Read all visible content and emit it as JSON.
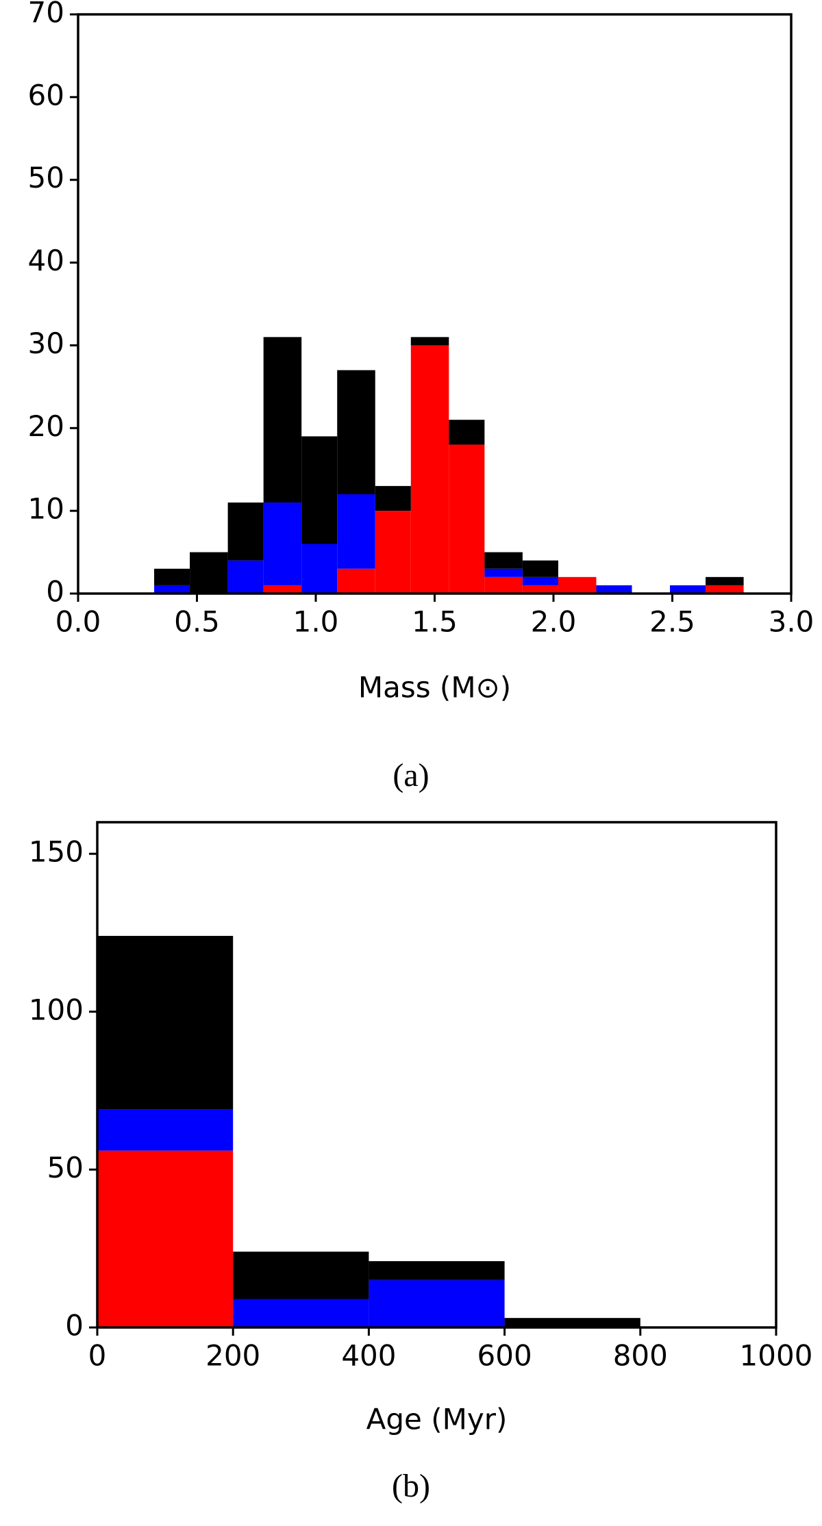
{
  "chart_data": [
    {
      "type": "histogram",
      "caption": "(a)",
      "x_label": "Mass (M⊙)",
      "bins": [
        0.32,
        0.47,
        0.63,
        0.78,
        0.94,
        1.09,
        1.25,
        1.4,
        1.56,
        1.71,
        1.87,
        2.02,
        2.18,
        2.33,
        2.49,
        2.64,
        2.8
      ],
      "series": [
        {
          "color": "#ff0000",
          "values": [
            0,
            0,
            0,
            1,
            0,
            3,
            10,
            30,
            18,
            2,
            1,
            2,
            0,
            0,
            0,
            1
          ]
        },
        {
          "color": "#0000ff",
          "values": [
            1,
            0,
            4,
            10,
            6,
            9,
            0,
            0,
            0,
            1,
            1,
            0,
            1,
            0,
            1,
            0
          ]
        },
        {
          "color": "#000000",
          "values": [
            2,
            5,
            7,
            20,
            13,
            15,
            3,
            1,
            3,
            2,
            2,
            0,
            0,
            0,
            0,
            1
          ]
        }
      ],
      "xlim": [
        0,
        3
      ],
      "xticks": [
        {
          "value": 0,
          "label": "0.0"
        },
        0.5,
        {
          "value": 1,
          "label": "1.0"
        },
        1.5,
        {
          "value": 2,
          "label": "2.0"
        },
        2.5,
        {
          "value": 3,
          "label": "3.0"
        }
      ],
      "ylim": [
        0,
        70
      ],
      "yticks": [
        0,
        10,
        20,
        30,
        40,
        50,
        60,
        70
      ]
    },
    {
      "type": "histogram",
      "caption": "(b)",
      "x_label": "Age (Myr)",
      "bins": [
        0,
        200,
        400,
        600,
        800,
        1000
      ],
      "series": [
        {
          "color": "#ff0000",
          "values": [
            56,
            0,
            0,
            0,
            0
          ]
        },
        {
          "color": "#0000ff",
          "values": [
            13,
            9,
            15,
            0,
            0
          ]
        },
        {
          "color": "#000000",
          "values": [
            55,
            15,
            6,
            3,
            0
          ]
        }
      ],
      "xlim": [
        0,
        1000
      ],
      "xticks": [
        0,
        200,
        400,
        600,
        800,
        1000
      ],
      "ylim": [
        0,
        160
      ],
      "yticks": [
        0,
        50,
        100,
        150
      ]
    }
  ]
}
